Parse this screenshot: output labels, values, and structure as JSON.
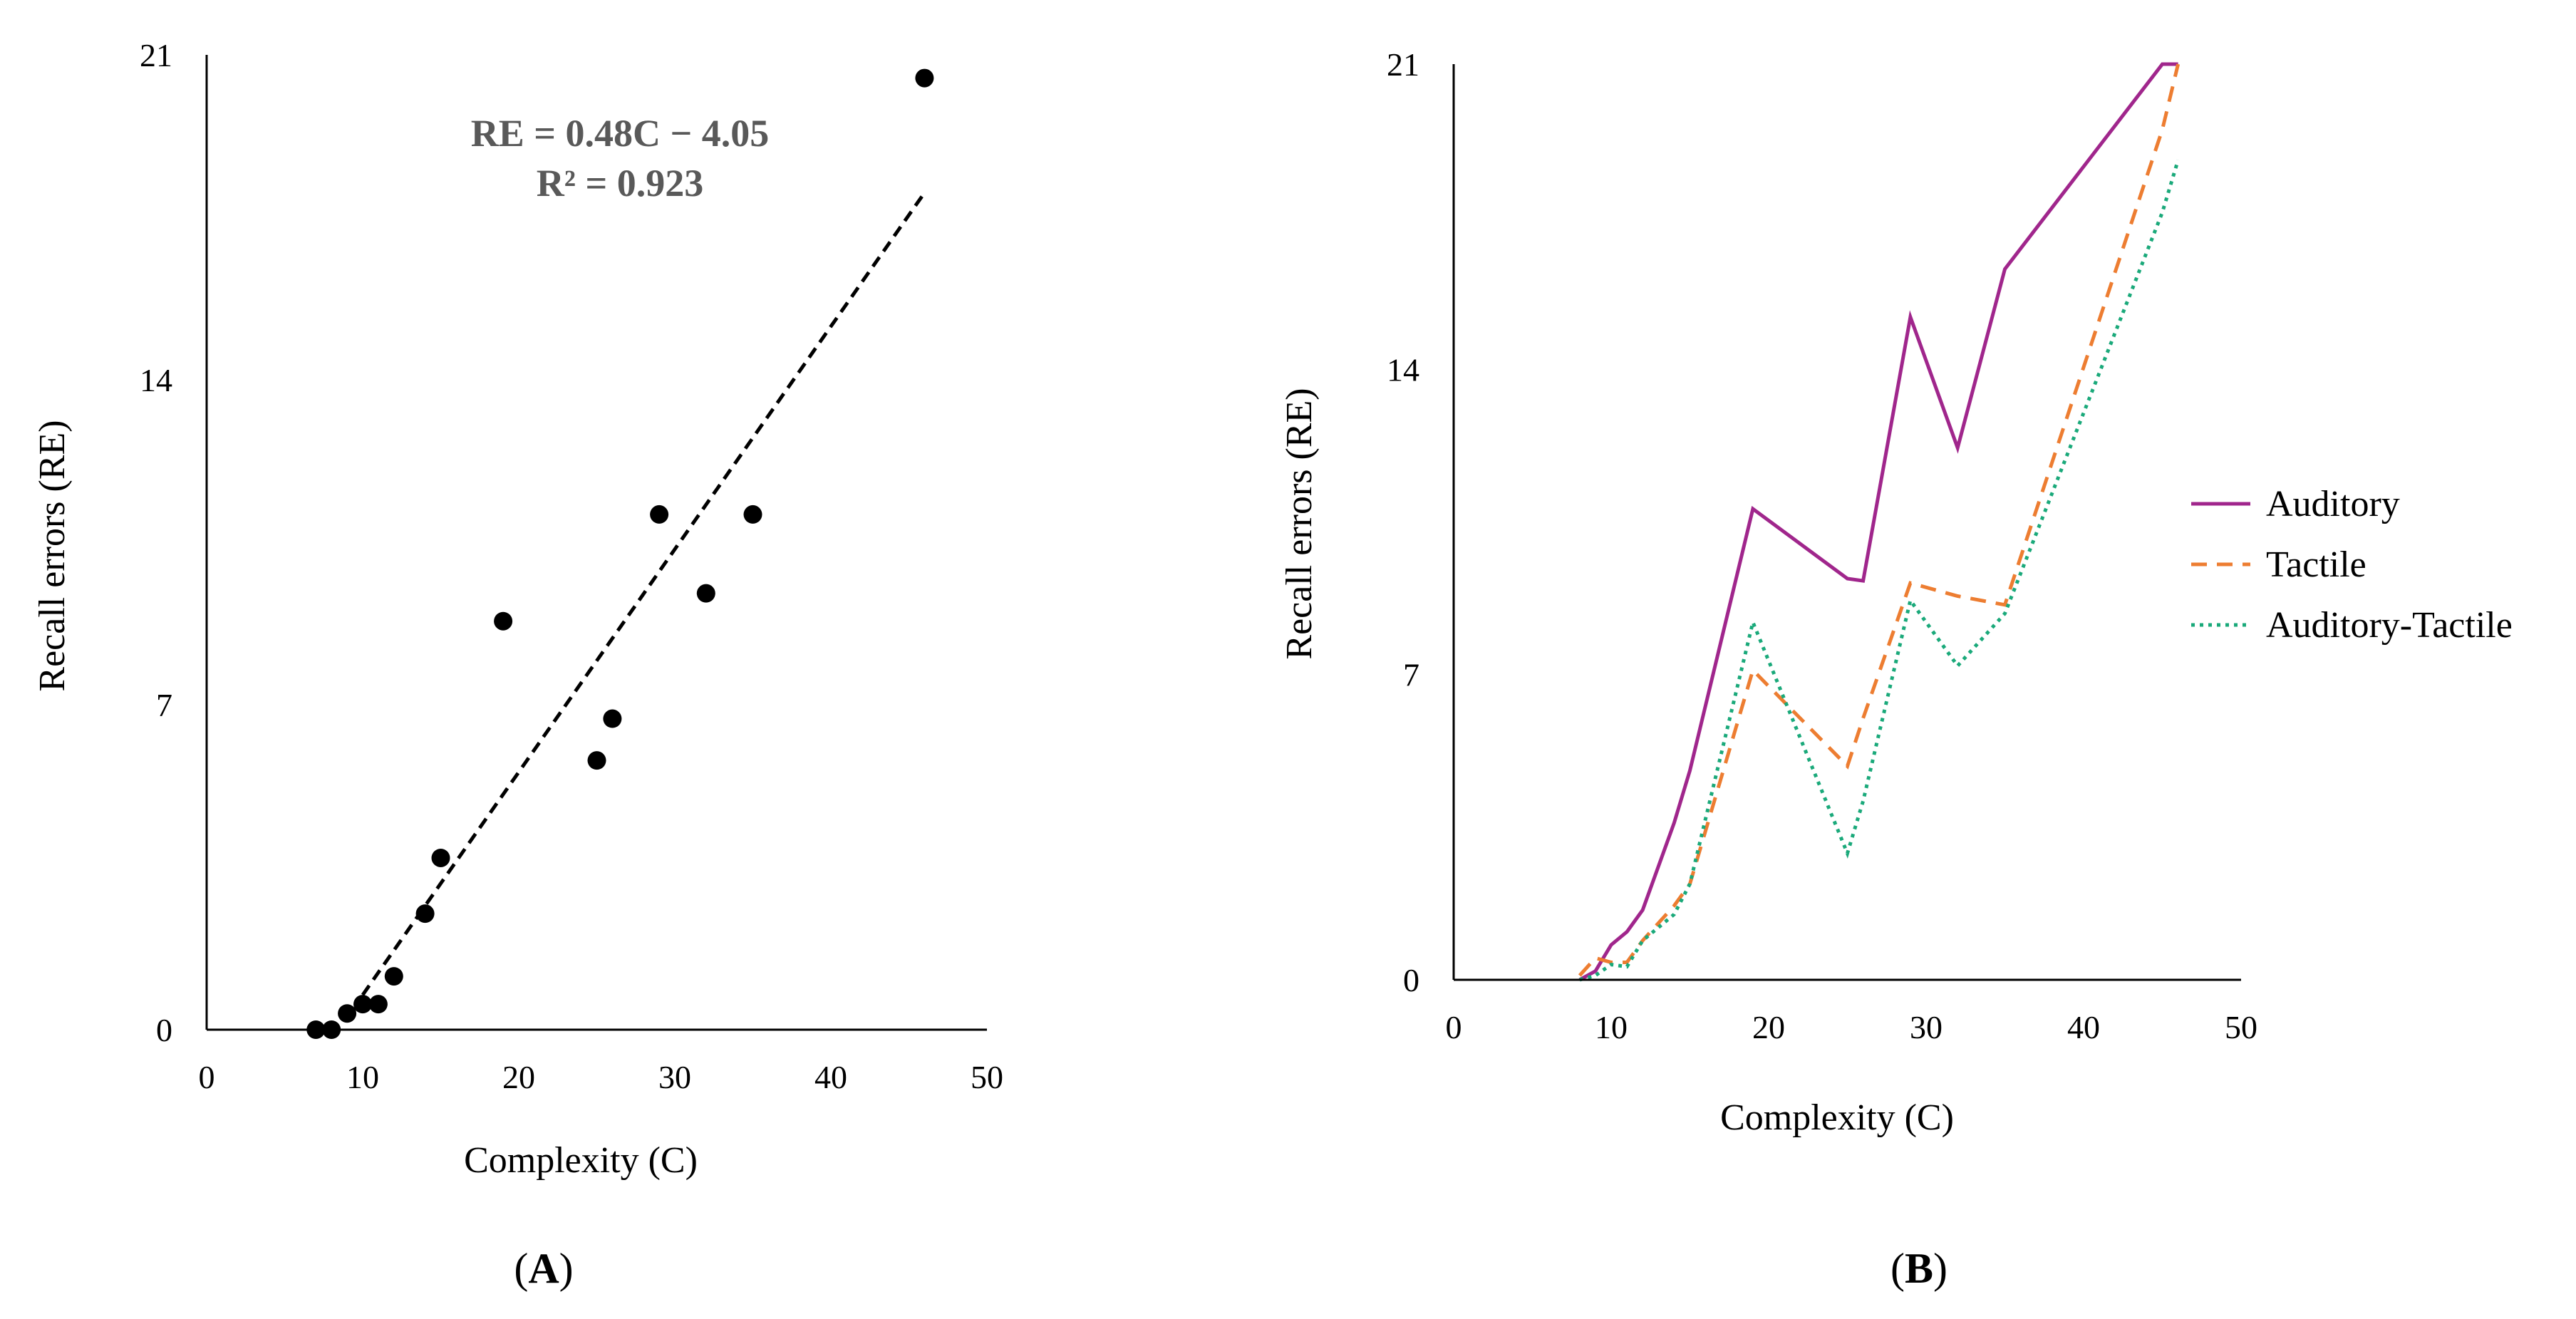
{
  "chart_data": [
    {
      "panel": "A",
      "type": "scatter",
      "panel_label": "A",
      "xlabel": "Complexity (C)",
      "ylabel": "Recall errors (RE)",
      "xlim": [
        0,
        50
      ],
      "ylim": [
        0,
        21
      ],
      "xticks": [
        0,
        10,
        20,
        30,
        40,
        50
      ],
      "yticks": [
        0,
        7,
        14,
        21
      ],
      "grid": false,
      "points": [
        {
          "x": 7,
          "y": 0
        },
        {
          "x": 8,
          "y": 0
        },
        {
          "x": 9,
          "y": 0.35
        },
        {
          "x": 10,
          "y": 0.55
        },
        {
          "x": 11,
          "y": 0.55
        },
        {
          "x": 12,
          "y": 1.15
        },
        {
          "x": 14,
          "y": 2.5
        },
        {
          "x": 15,
          "y": 3.7
        },
        {
          "x": 19,
          "y": 8.8
        },
        {
          "x": 25,
          "y": 5.8
        },
        {
          "x": 26,
          "y": 6.7
        },
        {
          "x": 29,
          "y": 11.1
        },
        {
          "x": 32,
          "y": 9.4
        },
        {
          "x": 35,
          "y": 11.1
        },
        {
          "x": 46,
          "y": 20.5
        }
      ],
      "trendline": {
        "slope": 0.48,
        "intercept": -4.05,
        "x_range": [
          10,
          46
        ],
        "style": "dashed",
        "equation": "RE = 0.48C − 4.05",
        "r_squared": "R² = 0.923"
      }
    },
    {
      "panel": "B",
      "type": "line",
      "panel_label": "B",
      "xlabel": "Complexity (C)",
      "ylabel": "Recall errors (RE)",
      "xlim": [
        0,
        50
      ],
      "ylim": [
        0,
        21
      ],
      "xticks": [
        0,
        10,
        20,
        30,
        40,
        50
      ],
      "yticks": [
        0,
        7,
        14,
        21
      ],
      "grid": false,
      "legend_position": "right",
      "x": [
        8,
        9,
        10,
        11,
        12,
        14,
        15,
        19,
        25,
        26,
        29,
        32,
        35,
        45,
        46
      ],
      "series": [
        {
          "name": "Auditory",
          "color": "#a0268c",
          "style": "solid",
          "values": [
            0,
            0.2,
            0.8,
            1.1,
            1.6,
            3.6,
            4.8,
            10.8,
            9.2,
            9.15,
            15.2,
            12.2,
            16.3,
            21,
            21
          ]
        },
        {
          "name": "Tactile",
          "color": "#ed7d31",
          "style": "dashed",
          "values": [
            0.1,
            0.5,
            0.4,
            0.4,
            0.9,
            1.7,
            2.2,
            7.1,
            4.9,
            6.0,
            9.1,
            8.8,
            8.6,
            19.5,
            21
          ]
        },
        {
          "name": "Auditory-Tactile",
          "color": "#1aa97a",
          "style": "dotted",
          "values": [
            0,
            0.1,
            0.35,
            0.3,
            0.9,
            1.5,
            2.2,
            8.2,
            2.9,
            4.1,
            8.7,
            7.2,
            8.4,
            17.6,
            18.8
          ]
        }
      ]
    }
  ]
}
